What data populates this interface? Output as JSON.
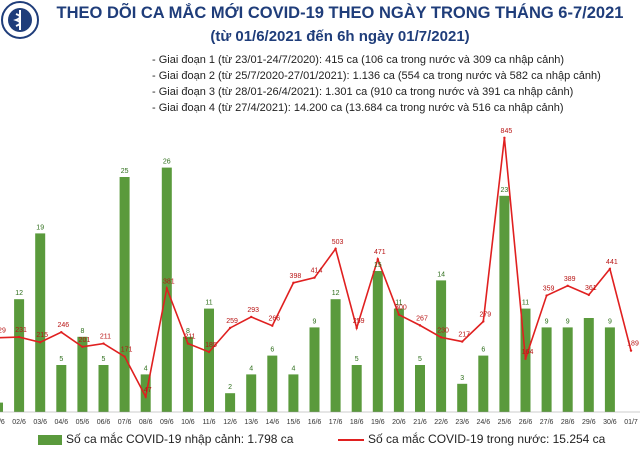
{
  "title": "THEO DÕI CA MẮC MỚI COVID-19 THEO NGÀY TRONG THÁNG 6-7/2021",
  "subtitle": "(từ 01/6/2021 đến 6h ngày 01/7/2021)",
  "logo_text": "BỘ Y TẾ",
  "phases": [
    "- Giai đoạn 1 (từ 23/01-24/7/2020): 415 ca (106 ca trong nước và 309 ca nhập cảnh)",
    "- Giai đoạn 2 (từ 25/7/2020-27/01/2021): 1.136 ca (554 ca trong nước và 582 ca nhập cảnh)",
    "- Giai đoạn 3 (từ 28/01-26/4/2021): 1.301 ca (910 ca trong nước và 391 ca nhập cảnh)",
    "- Giai đoạn 4 (từ 27/4/2021): 14.200 ca (13.684 ca trong nước và 516 ca nhập cảnh)"
  ],
  "colors": {
    "bar": "#5a9a3c",
    "line": "#e02020",
    "title": "#1f3d7a"
  },
  "chart_data": {
    "type": "bar",
    "categories": [
      "01/6",
      "02/6",
      "03/6",
      "04/6",
      "05/6",
      "06/6",
      "07/6",
      "08/6",
      "09/6",
      "10/6",
      "11/6",
      "12/6",
      "13/6",
      "14/6",
      "15/6",
      "16/6",
      "17/6",
      "18/6",
      "19/6",
      "20/6",
      "21/6",
      "22/6",
      "23/6",
      "24/6",
      "25/6",
      "26/6",
      "27/6",
      "28/6",
      "29/6",
      "30/6",
      "01/7"
    ],
    "series": [
      {
        "name": "Số ca mắc COVID-19 nhập cảnh: 1.798 ca",
        "type": "bar",
        "values": [
          1,
          12,
          19,
          5,
          8,
          5,
          25,
          4,
          26,
          8,
          11,
          2,
          4,
          6,
          4,
          9,
          12,
          5,
          15,
          11,
          5,
          14,
          3,
          6,
          23,
          11,
          9,
          9,
          10,
          9,
          null
        ]
      },
      {
        "name": "Số ca mắc COVID-19 trong nước: 15.254 ca",
        "type": "line",
        "values": [
          229,
          231,
          215,
          246,
          201,
          211,
          171,
          47,
          381,
          211,
          185,
          259,
          293,
          266,
          398,
          414,
          503,
          259,
          471,
          300,
          267,
          230,
          217,
          279,
          845,
          164,
          359,
          389,
          361,
          441,
          189
        ]
      }
    ],
    "bar_labels": [
      "1",
      "12",
      "19",
      "5",
      "8",
      "5",
      "25",
      "4",
      "26",
      "8",
      "11",
      "2",
      "4",
      "6",
      "4",
      "9",
      "12",
      "5",
      "15",
      "11",
      "5",
      "14",
      "3",
      "6",
      "23",
      "11",
      "9",
      "9",
      "",
      "9",
      ""
    ],
    "line_labels": [
      "229",
      "231",
      "215",
      "246",
      "201",
      "211",
      "171",
      "47",
      "381",
      "211",
      "185",
      "259",
      "293",
      "266",
      "398",
      "414",
      "503",
      "259",
      "471",
      "300",
      "267",
      "230",
      "217",
      "279",
      "845",
      "164",
      "359",
      "389",
      "361",
      "441",
      "189"
    ],
    "bar_ylim": [
      0,
      30
    ],
    "line_ylim": [
      0,
      900
    ],
    "grid": false,
    "legend_position": "bottom"
  },
  "legend": {
    "bar": "Số ca mắc COVID-19 nhập cảnh: 1.798 ca",
    "line": "Số ca mắc COVID-19 trong nước: 15.254 ca"
  }
}
